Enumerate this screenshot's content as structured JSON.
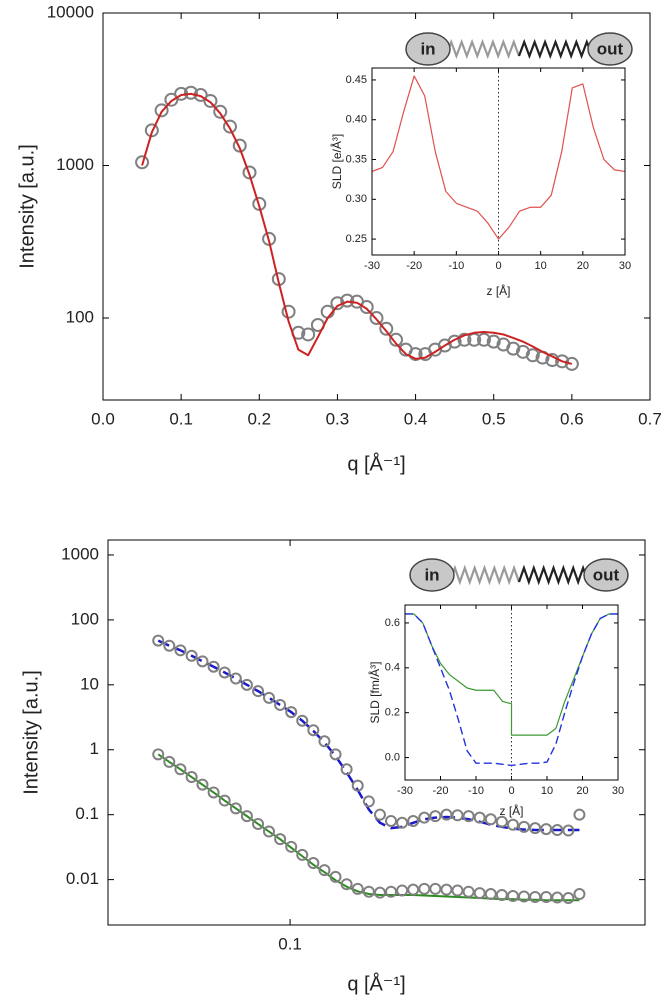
{
  "chart_data": [
    {
      "type": "line",
      "ylog": true,
      "xlabel": "q [Å⁻¹]",
      "ylabel": "Intensity [a.u.]",
      "xlim": [
        0,
        0.7
      ],
      "xticks": [
        {
          "value": 0,
          "label": "0.0"
        },
        0.1,
        0.2,
        0.3,
        0.4,
        0.5,
        0.6,
        0.7
      ],
      "ylim": [
        29,
        10000
      ],
      "yticks": [
        100,
        1000,
        10000
      ],
      "x": [
        0.05,
        0.0625,
        0.075,
        0.0875,
        0.1,
        0.1125,
        0.125,
        0.1375,
        0.15,
        0.1625,
        0.175,
        0.1875,
        0.2,
        0.2125,
        0.225,
        0.2375,
        0.25,
        0.2625,
        0.275,
        0.2875,
        0.3,
        0.3125,
        0.325,
        0.3375,
        0.35,
        0.3625,
        0.375,
        0.3875,
        0.4,
        0.4125,
        0.425,
        0.4375,
        0.45,
        0.4625,
        0.475,
        0.4875,
        0.5,
        0.5125,
        0.525,
        0.5375,
        0.55,
        0.5625,
        0.575,
        0.5875,
        0.6
      ],
      "series": [
        {
          "mode": "markers",
          "color": "#808080",
          "values": [
            1050,
            1700,
            2300,
            2700,
            2950,
            3000,
            2900,
            2650,
            2250,
            1800,
            1350,
            900,
            560,
            330,
            180,
            110,
            80,
            78,
            90,
            110,
            125,
            130,
            128,
            118,
            100,
            85,
            72,
            62,
            58,
            58,
            62,
            66,
            70,
            72,
            72,
            72,
            70,
            67,
            63,
            60,
            57,
            55,
            53,
            52,
            50
          ]
        },
        {
          "mode": "lines",
          "color": "#cc2222",
          "values": [
            1000,
            1650,
            2250,
            2650,
            2900,
            2950,
            2850,
            2600,
            2200,
            1750,
            1300,
            870,
            540,
            320,
            170,
            95,
            62,
            57,
            75,
            100,
            120,
            128,
            126,
            115,
            98,
            82,
            68,
            58,
            54,
            55,
            60,
            66,
            72,
            77,
            80,
            81,
            80,
            78,
            74,
            70,
            65,
            60,
            56,
            52,
            50
          ]
        }
      ]
    },
    {
      "type": "line",
      "inset": true,
      "zero_line": true,
      "annotations": [
        "in",
        "out"
      ],
      "xlabel": "z [Å]",
      "ylabel": "SLD [e/Å³]",
      "xlim": [
        -30,
        30
      ],
      "xticks": [
        -30,
        -20,
        -10,
        0,
        10,
        20,
        30
      ],
      "ylim": [
        0.23,
        0.465
      ],
      "yticks": [
        0.25,
        {
          "value": 0.3,
          "label": "0.30"
        },
        0.35,
        {
          "value": 0.4,
          "label": "0.40"
        },
        0.45
      ],
      "x": [
        -30,
        -27.5,
        -25,
        -22.5,
        -20,
        -17.5,
        -15,
        -12.5,
        -10,
        -7.5,
        -5,
        -2.5,
        0,
        2.5,
        5,
        7.5,
        10,
        12.5,
        15,
        17.5,
        20,
        22.5,
        25,
        27.5,
        30
      ],
      "series": [
        {
          "mode": "lines",
          "color": "#e05050",
          "values": [
            0.335,
            0.34,
            0.36,
            0.41,
            0.455,
            0.43,
            0.36,
            0.31,
            0.295,
            0.29,
            0.285,
            0.27,
            0.25,
            0.265,
            0.285,
            0.29,
            0.29,
            0.305,
            0.36,
            0.44,
            0.445,
            0.39,
            0.35,
            0.337,
            0.335
          ]
        }
      ]
    },
    {
      "type": "line",
      "xlog": true,
      "ylog": true,
      "xlabel": "q [Å⁻¹]",
      "ylabel": "Intensity [a.u.]",
      "xlim": [
        0.0384,
        0.646
      ],
      "xticks": [
        0.1
      ],
      "ylim": [
        0.002,
        1700
      ],
      "yticks": [
        0.01,
        0.1,
        1,
        10,
        100,
        1000
      ],
      "x": [
        0.05,
        0.053,
        0.0562,
        0.0596,
        0.0631,
        0.0669,
        0.0709,
        0.0752,
        0.0797,
        0.0845,
        0.0895,
        0.0949,
        0.1006,
        0.1066,
        0.113,
        0.1198,
        0.127,
        0.1346,
        0.1427,
        0.1513,
        0.1604,
        0.17,
        0.1802,
        0.191,
        0.2025,
        0.2146,
        0.2275,
        0.2411,
        0.2556,
        0.2709,
        0.2872,
        0.3044,
        0.3227,
        0.342,
        0.3626,
        0.3843,
        0.4074,
        0.4318,
        0.4577
      ],
      "series": [
        {
          "mode": "lines",
          "dash": true,
          "color": "#1a1acc",
          "values": [
            48,
            40,
            34,
            28,
            23,
            19,
            15.5,
            12.5,
            10,
            8,
            6.3,
            4.9,
            3.8,
            2.8,
            1.95,
            1.3,
            0.8,
            0.45,
            0.24,
            0.12,
            0.075,
            0.062,
            0.065,
            0.075,
            0.085,
            0.09,
            0.092,
            0.09,
            0.085,
            0.078,
            0.07,
            0.065,
            0.061,
            0.059,
            0.058,
            0.058,
            0.058,
            0.058,
            0.058
          ]
        },
        {
          "mode": "lines",
          "color": "#2e8b22",
          "values": [
            0.85,
            0.65,
            0.5,
            0.38,
            0.29,
            0.22,
            0.165,
            0.125,
            0.095,
            0.072,
            0.055,
            0.042,
            0.031,
            0.023,
            0.017,
            0.013,
            0.0098,
            0.0078,
            0.0066,
            0.006,
            0.0058,
            0.0058,
            0.0058,
            0.0058,
            0.0057,
            0.0056,
            0.0055,
            0.0054,
            0.0053,
            0.0052,
            0.0051,
            0.005,
            0.005,
            0.0049,
            0.0049,
            0.0048,
            0.0048,
            0.0048,
            0.0048
          ]
        },
        {
          "mode": "markers",
          "color": "#808080",
          "values": [
            48,
            40,
            34,
            28,
            23,
            19,
            15.5,
            12.5,
            10,
            8,
            6.3,
            4.9,
            3.8,
            2.8,
            2.0,
            1.35,
            0.85,
            0.5,
            0.28,
            0.16,
            0.1,
            0.08,
            0.075,
            0.08,
            0.09,
            0.095,
            0.1,
            0.098,
            0.095,
            0.09,
            0.085,
            0.078,
            0.07,
            0.065,
            0.062,
            0.06,
            0.058,
            0.057,
            0.1
          ]
        },
        {
          "mode": "markers",
          "color": "#808080",
          "values": [
            0.85,
            0.65,
            0.5,
            0.38,
            0.29,
            0.22,
            0.165,
            0.125,
            0.095,
            0.072,
            0.055,
            0.042,
            0.032,
            0.024,
            0.018,
            0.014,
            0.011,
            0.0085,
            0.0072,
            0.0065,
            0.0063,
            0.0065,
            0.0068,
            0.007,
            0.0072,
            0.0072,
            0.007,
            0.0068,
            0.0065,
            0.0062,
            0.006,
            0.0058,
            0.0056,
            0.0055,
            0.0054,
            0.0054,
            0.0053,
            0.0052,
            0.006
          ]
        }
      ]
    },
    {
      "type": "line",
      "inset": true,
      "zero_line": true,
      "annotations": [
        "in",
        "out"
      ],
      "xlabel": "z [Å]",
      "ylabel": "SLD [fm/Å³]",
      "xlim": [
        -30,
        30
      ],
      "xticks": [
        -30,
        -20,
        -10,
        0,
        10,
        20,
        30
      ],
      "ylim": [
        -0.1,
        0.68
      ],
      "yticks": [
        {
          "value": 0,
          "label": "0.0"
        },
        0.2,
        0.4,
        0.6
      ],
      "x": [
        -30,
        -27.5,
        -25,
        -22.5,
        -20,
        -17.5,
        -15,
        -12.5,
        -10,
        -7.5,
        -5,
        -2.5,
        0,
        0,
        2.5,
        5,
        7.5,
        10,
        12.5,
        15,
        17.5,
        20,
        22.5,
        25,
        27.5,
        30
      ],
      "series": [
        {
          "mode": "lines",
          "color": "#3c9a32",
          "values": [
            0.64,
            0.64,
            0.6,
            0.5,
            0.42,
            0.37,
            0.34,
            0.31,
            0.3,
            0.3,
            0.3,
            0.25,
            0.24,
            0.1,
            0.1,
            0.1,
            0.1,
            0.1,
            0.13,
            0.25,
            0.35,
            0.45,
            0.55,
            0.62,
            0.64,
            0.64
          ]
        },
        {
          "mode": "lines",
          "dash": true,
          "color": "#2233dd",
          "values": [
            0.64,
            0.64,
            0.6,
            0.5,
            0.4,
            0.3,
            0.17,
            0.03,
            -0.025,
            -0.025,
            -0.025,
            -0.03,
            -0.035,
            -0.035,
            -0.03,
            -0.025,
            -0.025,
            -0.02,
            0.06,
            0.2,
            0.33,
            0.45,
            0.55,
            0.62,
            0.64,
            0.64
          ]
        }
      ]
    }
  ]
}
